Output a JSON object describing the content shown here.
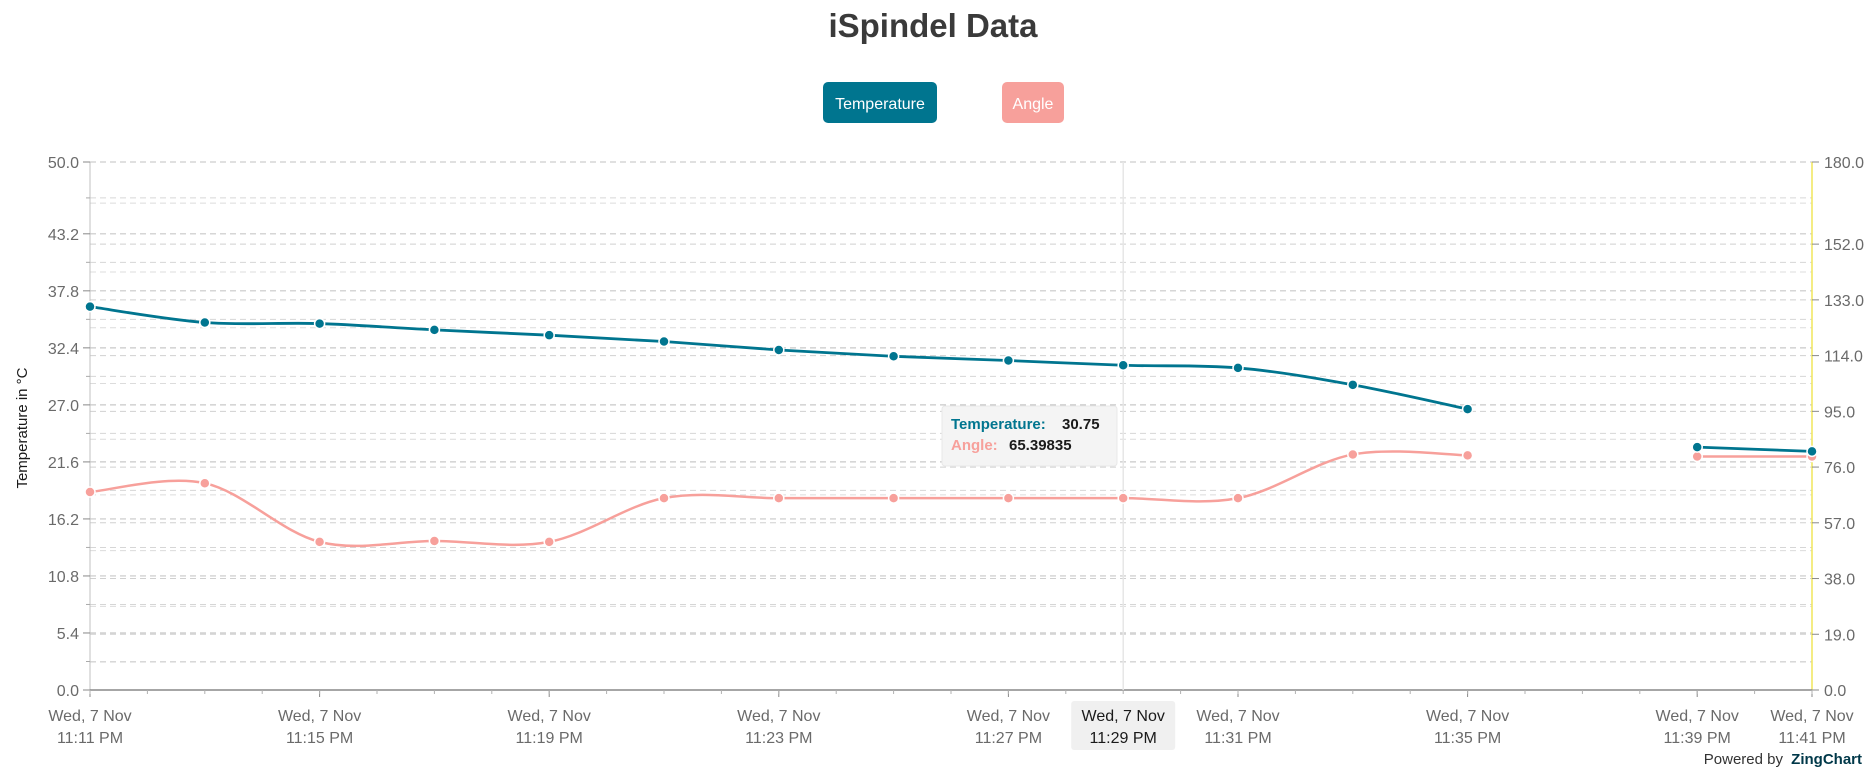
{
  "chart_data": {
    "type": "line",
    "title": "iSpindel Data",
    "ylabel": "Temperature in °C",
    "y2label": "",
    "xlabel": "",
    "ylim": [
      0,
      50
    ],
    "y2lim": [
      0,
      180
    ],
    "y_ticks": [
      "50.0",
      "43.2",
      "37.8",
      "32.4",
      "27.0",
      "21.6",
      "16.2",
      "10.8",
      "5.4",
      "0.0"
    ],
    "y_tick_values": [
      50,
      43.2,
      37.8,
      32.4,
      27.0,
      21.6,
      16.2,
      10.8,
      5.4,
      0
    ],
    "y2_ticks": [
      "180.0",
      "152.0",
      "133.0",
      "114.0",
      "95.0",
      "76.0",
      "57.0",
      "38.0",
      "19.0",
      "0.0"
    ],
    "y2_tick_values": [
      180,
      152,
      133,
      114,
      95,
      76,
      57,
      38,
      19,
      0
    ],
    "x_tick_labels": [
      {
        "minute": 0,
        "line1": "Wed, 7 Nov",
        "line2": "11:11 PM"
      },
      {
        "minute": 4,
        "line1": "Wed, 7 Nov",
        "line2": "11:15 PM"
      },
      {
        "minute": 8,
        "line1": "Wed, 7 Nov",
        "line2": "11:19 PM"
      },
      {
        "minute": 12,
        "line1": "Wed, 7 Nov",
        "line2": "11:23 PM"
      },
      {
        "minute": 16,
        "line1": "Wed, 7 Nov",
        "line2": "11:27 PM"
      },
      {
        "minute": 20,
        "line1": "Wed, 7 Nov",
        "line2": "11:31 PM"
      },
      {
        "minute": 24,
        "line1": "Wed, 7 Nov",
        "line2": "11:35 PM"
      },
      {
        "minute": 28,
        "line1": "Wed, 7 Nov",
        "line2": "11:39 PM"
      },
      {
        "minute": 30,
        "line1": "Wed, 7 Nov",
        "line2": "11:41 PM"
      }
    ],
    "legend_placement": "top-center",
    "grid": true,
    "series": [
      {
        "name": "Temperature",
        "axis": "left",
        "color": "#00758f",
        "points": [
          [
            0,
            36.3
          ],
          [
            2,
            34.8
          ],
          [
            4,
            34.7
          ],
          [
            6,
            34.1
          ],
          [
            8,
            33.6
          ],
          [
            10,
            33.0
          ],
          [
            12,
            32.2
          ],
          [
            14,
            31.6
          ],
          [
            16,
            31.2
          ],
          [
            18,
            30.75
          ],
          [
            20,
            30.5
          ],
          [
            22,
            28.9
          ],
          [
            24,
            26.6
          ],
          null,
          [
            28,
            23.0
          ],
          [
            30,
            22.6
          ]
        ]
      },
      {
        "name": "Angle",
        "axis": "right",
        "color": "#f7a09b",
        "points": [
          [
            0,
            67.5
          ],
          [
            2,
            70.5
          ],
          [
            4,
            50.5
          ],
          [
            6,
            50.8
          ],
          [
            8,
            50.5
          ],
          [
            10,
            65.4
          ],
          [
            12,
            65.4
          ],
          [
            14,
            65.4
          ],
          [
            16,
            65.4
          ],
          [
            18,
            65.39835
          ],
          [
            20,
            65.4
          ],
          [
            22,
            80.3
          ],
          [
            24,
            80.0
          ],
          null,
          [
            28,
            79.6
          ],
          [
            30,
            79.6
          ]
        ]
      }
    ],
    "tooltip": {
      "at_minute": 18,
      "label_line1": "Wed, 7 Nov",
      "label_line2": "11:29 PM",
      "rows": [
        {
          "name": "Temperature:",
          "value": "30.75",
          "color": "#00758f"
        },
        {
          "name": "Angle:",
          "value": "65.39835",
          "color": "#f7a09b"
        }
      ]
    }
  },
  "legend": {
    "temperature_label": "Temperature",
    "angle_label": "Angle",
    "temperature_color": "#00758f",
    "angle_color": "#f7a09b"
  },
  "footer": {
    "powered_by": "Powered by",
    "brand": "ZingChart"
  }
}
